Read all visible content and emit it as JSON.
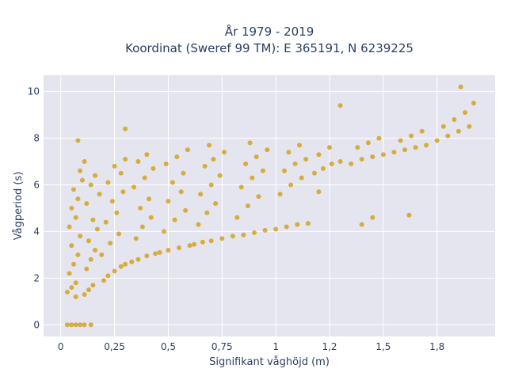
{
  "chart_data": {
    "type": "scatter",
    "title_line1": "År 1979 - 2019",
    "title_line2": "Koordinat (Sweref 99 TM): E 365191, N 6239225",
    "xlabel": "Signifikant våghöjd (m)",
    "ylabel": "Vågperiod (s)",
    "xlim": [
      -0.08,
      2.02
    ],
    "ylim": [
      -0.5,
      10.7
    ],
    "xticks": [
      {
        "value": 0,
        "label": "0"
      },
      {
        "value": 0.25,
        "label": "0,25"
      },
      {
        "value": 0.5,
        "label": "0,5"
      },
      {
        "value": 0.75,
        "label": "0,75"
      },
      {
        "value": 1.0,
        "label": "1"
      },
      {
        "value": 1.25,
        "label": "1,2"
      },
      {
        "value": 1.5,
        "label": "1,5"
      },
      {
        "value": 1.75,
        "label": "1,8"
      }
    ],
    "yticks": [
      {
        "value": 0,
        "label": "0"
      },
      {
        "value": 2,
        "label": "2"
      },
      {
        "value": 4,
        "label": "4"
      },
      {
        "value": 6,
        "label": "6"
      },
      {
        "value": 8,
        "label": "8"
      },
      {
        "value": 10,
        "label": "10"
      }
    ],
    "grid": true,
    "background_color": "#e5e5f0",
    "marker_color": "#d4a21e",
    "series": [
      {
        "points": [
          [
            0.03,
            1.4
          ],
          [
            0.05,
            1.6
          ],
          [
            0.07,
            1.8
          ],
          [
            0.04,
            2.2
          ],
          [
            0.06,
            2.6
          ],
          [
            0.08,
            3.0
          ],
          [
            0.05,
            3.4
          ],
          [
            0.09,
            3.8
          ],
          [
            0.04,
            4.2
          ],
          [
            0.07,
            4.6
          ],
          [
            0.05,
            5.0
          ],
          [
            0.08,
            5.4
          ],
          [
            0.06,
            5.8
          ],
          [
            0.1,
            6.2
          ],
          [
            0.09,
            6.6
          ],
          [
            0.07,
            1.2
          ],
          [
            0.11,
            1.3
          ],
          [
            0.13,
            1.5
          ],
          [
            0.15,
            1.7
          ],
          [
            0.12,
            2.4
          ],
          [
            0.14,
            2.8
          ],
          [
            0.16,
            3.2
          ],
          [
            0.13,
            3.6
          ],
          [
            0.17,
            4.1
          ],
          [
            0.15,
            4.5
          ],
          [
            0.12,
            5.2
          ],
          [
            0.18,
            5.6
          ],
          [
            0.14,
            6.0
          ],
          [
            0.16,
            6.4
          ],
          [
            0.11,
            7.0
          ],
          [
            0.2,
            1.9
          ],
          [
            0.22,
            2.1
          ],
          [
            0.25,
            2.3
          ],
          [
            0.28,
            2.5
          ],
          [
            0.3,
            2.6
          ],
          [
            0.19,
            3.0
          ],
          [
            0.23,
            3.5
          ],
          [
            0.27,
            3.9
          ],
          [
            0.21,
            4.4
          ],
          [
            0.26,
            4.8
          ],
          [
            0.24,
            5.3
          ],
          [
            0.29,
            5.7
          ],
          [
            0.22,
            6.1
          ],
          [
            0.28,
            6.5
          ],
          [
            0.25,
            6.8
          ],
          [
            0.3,
            7.1
          ],
          [
            0.33,
            2.7
          ],
          [
            0.36,
            2.8
          ],
          [
            0.4,
            2.95
          ],
          [
            0.44,
            3.05
          ],
          [
            0.35,
            3.7
          ],
          [
            0.38,
            4.2
          ],
          [
            0.42,
            4.6
          ],
          [
            0.37,
            5.0
          ],
          [
            0.41,
            5.4
          ],
          [
            0.34,
            5.9
          ],
          [
            0.39,
            6.3
          ],
          [
            0.43,
            6.7
          ],
          [
            0.36,
            7.0
          ],
          [
            0.4,
            7.3
          ],
          [
            0.46,
            3.1
          ],
          [
            0.5,
            3.2
          ],
          [
            0.55,
            3.3
          ],
          [
            0.6,
            3.4
          ],
          [
            0.48,
            4.0
          ],
          [
            0.53,
            4.5
          ],
          [
            0.58,
            4.9
          ],
          [
            0.5,
            5.3
          ],
          [
            0.56,
            5.7
          ],
          [
            0.52,
            6.1
          ],
          [
            0.57,
            6.5
          ],
          [
            0.49,
            6.9
          ],
          [
            0.54,
            7.2
          ],
          [
            0.59,
            7.5
          ],
          [
            0.62,
            3.45
          ],
          [
            0.66,
            3.55
          ],
          [
            0.7,
            3.6
          ],
          [
            0.75,
            3.7
          ],
          [
            0.64,
            4.3
          ],
          [
            0.68,
            4.8
          ],
          [
            0.72,
            5.2
          ],
          [
            0.65,
            5.6
          ],
          [
            0.7,
            6.0
          ],
          [
            0.74,
            6.4
          ],
          [
            0.67,
            6.8
          ],
          [
            0.71,
            7.1
          ],
          [
            0.76,
            7.4
          ],
          [
            0.69,
            7.7
          ],
          [
            0.8,
            3.8
          ],
          [
            0.85,
            3.85
          ],
          [
            0.9,
            3.95
          ],
          [
            0.95,
            4.05
          ],
          [
            0.82,
            4.6
          ],
          [
            0.87,
            5.1
          ],
          [
            0.92,
            5.5
          ],
          [
            0.84,
            5.9
          ],
          [
            0.89,
            6.3
          ],
          [
            0.94,
            6.6
          ],
          [
            0.86,
            6.9
          ],
          [
            0.91,
            7.2
          ],
          [
            0.96,
            7.5
          ],
          [
            0.88,
            7.8
          ],
          [
            1.0,
            4.1
          ],
          [
            1.05,
            4.2
          ],
          [
            1.1,
            4.3
          ],
          [
            1.15,
            4.35
          ],
          [
            1.02,
            5.6
          ],
          [
            1.07,
            6.0
          ],
          [
            1.12,
            6.3
          ],
          [
            1.04,
            6.6
          ],
          [
            1.09,
            6.9
          ],
          [
            1.14,
            7.1
          ],
          [
            1.06,
            7.4
          ],
          [
            1.11,
            7.7
          ],
          [
            1.18,
            6.5
          ],
          [
            1.22,
            6.7
          ],
          [
            1.26,
            6.9
          ],
          [
            1.3,
            7.0
          ],
          [
            1.2,
            7.3
          ],
          [
            1.25,
            7.6
          ],
          [
            1.35,
            6.9
          ],
          [
            1.4,
            7.1
          ],
          [
            1.45,
            7.2
          ],
          [
            1.5,
            7.3
          ],
          [
            1.38,
            7.6
          ],
          [
            1.43,
            7.8
          ],
          [
            1.48,
            8.0
          ],
          [
            1.55,
            7.4
          ],
          [
            1.6,
            7.5
          ],
          [
            1.65,
            7.6
          ],
          [
            1.7,
            7.7
          ],
          [
            1.58,
            7.9
          ],
          [
            1.63,
            8.1
          ],
          [
            1.68,
            8.3
          ],
          [
            1.75,
            7.9
          ],
          [
            1.8,
            8.1
          ],
          [
            1.85,
            8.3
          ],
          [
            1.9,
            8.5
          ],
          [
            1.78,
            8.5
          ],
          [
            1.83,
            8.8
          ],
          [
            1.88,
            9.1
          ],
          [
            1.92,
            9.5
          ],
          [
            1.86,
            10.2
          ],
          [
            0.3,
            8.4
          ],
          [
            0.08,
            7.9
          ],
          [
            1.3,
            9.4
          ],
          [
            1.4,
            4.3
          ],
          [
            1.45,
            4.6
          ],
          [
            1.62,
            4.7
          ],
          [
            1.2,
            5.7
          ],
          [
            0.03,
            0
          ],
          [
            0.05,
            0
          ],
          [
            0.07,
            0
          ],
          [
            0.09,
            0
          ],
          [
            0.11,
            0
          ],
          [
            0.14,
            0
          ]
        ]
      }
    ]
  }
}
